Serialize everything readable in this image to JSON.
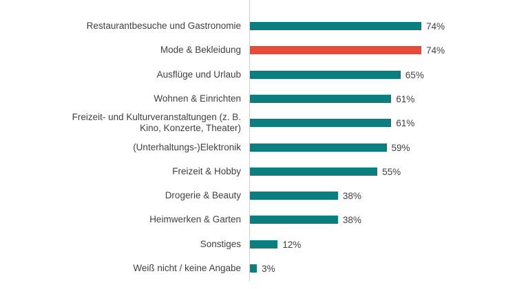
{
  "chart_data": {
    "type": "bar",
    "orientation": "horizontal",
    "title": "",
    "xlabel": "",
    "ylabel": "",
    "xlim": [
      0,
      100
    ],
    "grid": false,
    "categories": [
      "Restaurantbesuche und Gastronomie",
      "Mode & Bekleidung",
      "Ausflüge und Urlaub",
      "Wohnen & Einrichten",
      "Freizeit- und Kulturveranstaltungen (z. B.\nKino, Konzerte, Theater)",
      "(Unterhaltungs-)Elektronik",
      "Freizeit & Hobby",
      "Drogerie & Beauty",
      "Heimwerken & Garten",
      "Sonstiges",
      "Weiß nicht / keine Angabe"
    ],
    "values": [
      74,
      74,
      65,
      61,
      61,
      59,
      55,
      38,
      38,
      12,
      3
    ],
    "value_labels": [
      "74%",
      "74%",
      "65%",
      "61%",
      "61%",
      "59%",
      "55%",
      "38%",
      "38%",
      "12%",
      "3%"
    ],
    "highlight_index": 1,
    "colors": {
      "default": "#0b7f80",
      "highlight": "#e64c3a"
    }
  }
}
